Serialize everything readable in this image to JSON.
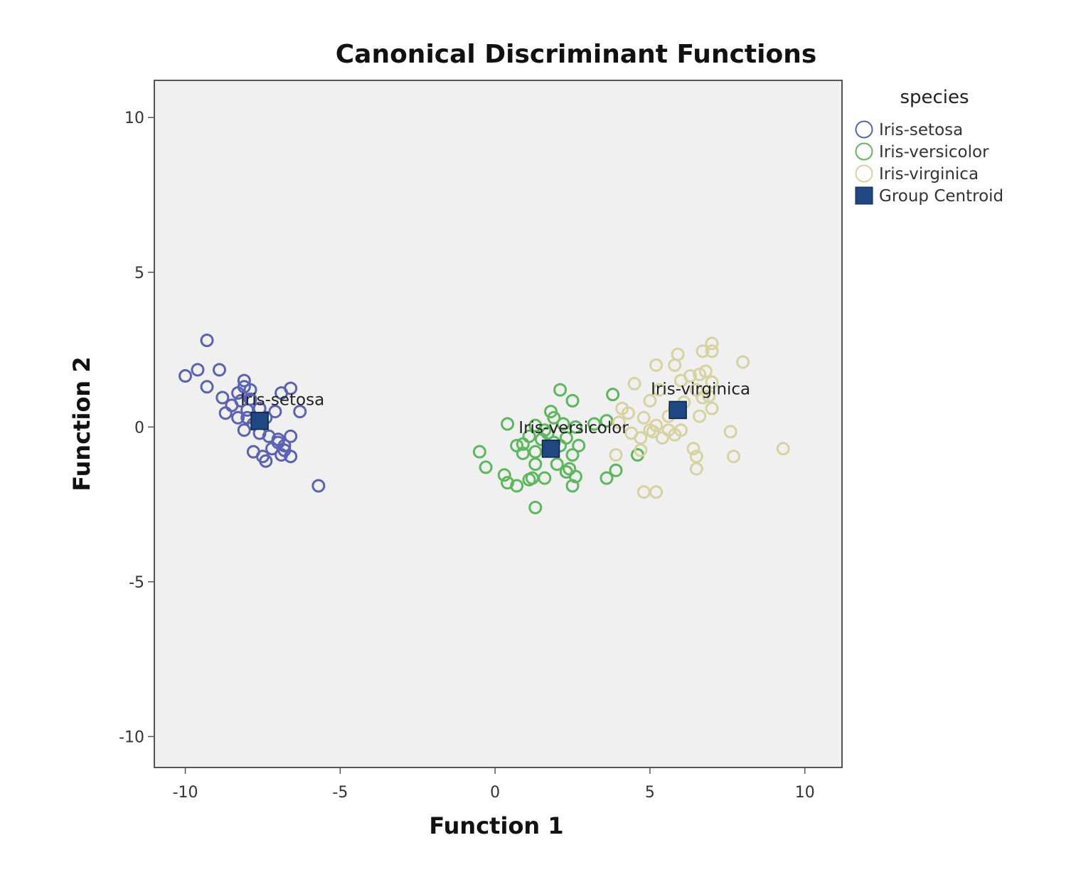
{
  "chart_data": {
    "type": "scatter",
    "title": "Canonical Discriminant Functions",
    "xlabel": "Function 1",
    "ylabel": "Function 2",
    "xlim": [
      -11,
      11.2
    ],
    "ylim": [
      -11,
      11.2
    ],
    "xticks": [
      -10,
      -5,
      0,
      5,
      10
    ],
    "yticks": [
      -10,
      -5,
      0,
      5,
      10
    ],
    "grid": false,
    "legend_title": "species",
    "legend_position": "right",
    "series": [
      {
        "name": "Iris-setosa",
        "color": "#5a62b8",
        "marker": "open-circle",
        "points": [
          [
            -9.3,
            2.8
          ],
          [
            -10.0,
            1.65
          ],
          [
            -9.6,
            1.85
          ],
          [
            -8.9,
            1.85
          ],
          [
            -9.3,
            1.3
          ],
          [
            -8.1,
            1.5
          ],
          [
            -8.3,
            1.1
          ],
          [
            -8.1,
            1.3
          ],
          [
            -7.9,
            1.2
          ],
          [
            -6.9,
            1.1
          ],
          [
            -6.6,
            1.25
          ],
          [
            -8.8,
            0.95
          ],
          [
            -8.5,
            0.7
          ],
          [
            -8.2,
            0.85
          ],
          [
            -7.9,
            0.9
          ],
          [
            -8.7,
            0.45
          ],
          [
            -8.3,
            0.3
          ],
          [
            -8.0,
            0.55
          ],
          [
            -7.6,
            0.6
          ],
          [
            -7.4,
            0.3
          ],
          [
            -7.1,
            0.5
          ],
          [
            -6.3,
            0.5
          ],
          [
            -8.1,
            -0.1
          ],
          [
            -7.8,
            0.1
          ],
          [
            -7.6,
            -0.2
          ],
          [
            -7.3,
            -0.3
          ],
          [
            -7.0,
            -0.4
          ],
          [
            -6.8,
            -0.6
          ],
          [
            -6.6,
            -0.3
          ],
          [
            -7.2,
            -0.7
          ],
          [
            -7.8,
            -0.8
          ],
          [
            -7.5,
            -0.95
          ],
          [
            -7.4,
            -1.1
          ],
          [
            -6.9,
            -0.9
          ],
          [
            -6.6,
            -0.95
          ],
          [
            -7.0,
            -0.5
          ],
          [
            -6.8,
            -0.75
          ],
          [
            -7.6,
            0.15
          ],
          [
            -8.0,
            0.3
          ],
          [
            -5.7,
            -1.9
          ]
        ]
      },
      {
        "name": "Iris-versicolor",
        "color": "#5cb85c",
        "marker": "open-circle",
        "points": [
          [
            2.1,
            1.2
          ],
          [
            2.5,
            0.85
          ],
          [
            3.8,
            1.05
          ],
          [
            1.8,
            0.5
          ],
          [
            0.4,
            0.1
          ],
          [
            1.3,
            0.05
          ],
          [
            1.9,
            0.3
          ],
          [
            2.2,
            0.1
          ],
          [
            2.6,
            0.0
          ],
          [
            3.2,
            0.1
          ],
          [
            3.6,
            0.2
          ],
          [
            1.1,
            -0.3
          ],
          [
            1.5,
            -0.4
          ],
          [
            1.9,
            -0.5
          ],
          [
            2.3,
            -0.35
          ],
          [
            2.7,
            -0.6
          ],
          [
            0.9,
            -0.55
          ],
          [
            1.3,
            -0.8
          ],
          [
            2.5,
            -0.9
          ],
          [
            -0.5,
            -0.8
          ],
          [
            0.9,
            -0.85
          ],
          [
            1.3,
            -1.2
          ],
          [
            2.0,
            -1.2
          ],
          [
            2.4,
            -1.35
          ],
          [
            -0.3,
            -1.3
          ],
          [
            0.3,
            -1.55
          ],
          [
            0.4,
            -1.8
          ],
          [
            0.7,
            -1.9
          ],
          [
            1.1,
            -1.7
          ],
          [
            1.6,
            -1.65
          ],
          [
            2.3,
            -1.45
          ],
          [
            2.6,
            -1.6
          ],
          [
            1.2,
            -1.65
          ],
          [
            2.5,
            -1.9
          ],
          [
            1.3,
            -2.6
          ],
          [
            3.6,
            -1.65
          ],
          [
            3.9,
            -1.4
          ],
          [
            4.6,
            -0.9
          ],
          [
            1.7,
            -0.2
          ],
          [
            2.1,
            -0.6
          ],
          [
            1.6,
            -0.1
          ],
          [
            0.7,
            -0.6
          ]
        ]
      },
      {
        "name": "Iris-virginica",
        "color": "#d6d3a0",
        "marker": "open-circle",
        "points": [
          [
            7.0,
            2.7
          ],
          [
            6.7,
            2.45
          ],
          [
            7.0,
            2.45
          ],
          [
            5.9,
            2.35
          ],
          [
            8.0,
            2.1
          ],
          [
            5.2,
            2.0
          ],
          [
            5.8,
            2.0
          ],
          [
            6.8,
            1.8
          ],
          [
            6.6,
            1.7
          ],
          [
            6.3,
            1.65
          ],
          [
            7.0,
            1.45
          ],
          [
            6.0,
            1.5
          ],
          [
            4.5,
            1.4
          ],
          [
            5.3,
            1.2
          ],
          [
            6.5,
            1.2
          ],
          [
            6.9,
            1.0
          ],
          [
            5.0,
            0.85
          ],
          [
            6.1,
            0.8
          ],
          [
            4.1,
            0.6
          ],
          [
            4.3,
            0.45
          ],
          [
            7.0,
            0.6
          ],
          [
            5.6,
            0.35
          ],
          [
            6.6,
            0.35
          ],
          [
            4.8,
            0.3
          ],
          [
            4.0,
            0.15
          ],
          [
            5.2,
            0.05
          ],
          [
            5.6,
            -0.1
          ],
          [
            6.0,
            -0.1
          ],
          [
            5.0,
            -0.1
          ],
          [
            4.4,
            -0.2
          ],
          [
            4.7,
            -0.35
          ],
          [
            5.4,
            -0.35
          ],
          [
            5.8,
            -0.25
          ],
          [
            5.1,
            -0.15
          ],
          [
            7.6,
            -0.15
          ],
          [
            6.4,
            -0.7
          ],
          [
            6.5,
            -0.95
          ],
          [
            7.7,
            -0.95
          ],
          [
            6.5,
            -1.35
          ],
          [
            3.9,
            -0.9
          ],
          [
            4.7,
            -0.75
          ],
          [
            9.3,
            -0.7
          ],
          [
            4.8,
            -2.1
          ],
          [
            5.2,
            -2.1
          ],
          [
            5.8,
            0.6
          ],
          [
            6.7,
            0.95
          ]
        ]
      },
      {
        "name": "Group Centroid",
        "color": "#1f4782",
        "marker": "filled-square",
        "points": [
          [
            -7.6,
            0.2,
            "Iris-setosa"
          ],
          [
            1.8,
            -0.7,
            "Iris-versicolor"
          ],
          [
            5.9,
            0.55,
            "Iris-virginica"
          ]
        ]
      }
    ]
  }
}
